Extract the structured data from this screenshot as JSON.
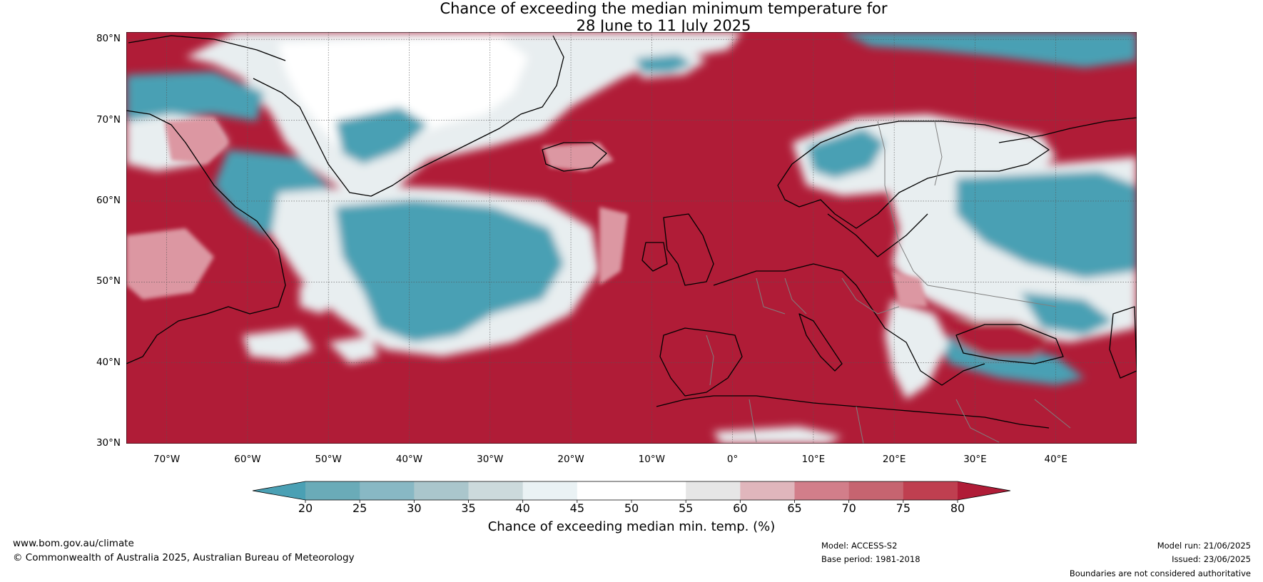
{
  "title": {
    "line1": "Chance of exceeding the median minimum temperature for",
    "line2": "28 June to 11 July 2025"
  },
  "map": {
    "lat_labels": [
      "80°N",
      "70°N",
      "60°N",
      "50°N",
      "40°N",
      "30°N"
    ],
    "lon_labels": [
      "70°W",
      "60°W",
      "50°W",
      "40°W",
      "30°W",
      "20°W",
      "10°W",
      "0°",
      "10°E",
      "20°E",
      "30°E",
      "40°E"
    ],
    "colors": {
      "red": "#b01c37",
      "teal": "#4aa0b4",
      "white": "#ffffff",
      "light": "#e8eef0",
      "pink": "#dc97a2"
    }
  },
  "colorbar": {
    "ticks": [
      "20",
      "25",
      "30",
      "35",
      "40",
      "45",
      "50",
      "55",
      "60",
      "65",
      "70",
      "75",
      "80"
    ],
    "colors": [
      "#4aa0b4",
      "#6aabb8",
      "#88b8c4",
      "#aac6cc",
      "#ccdadc",
      "#eaf2f4",
      "#ffffff",
      "#ffffff",
      "#e6e6e6",
      "#e0b6bc",
      "#d27e8a",
      "#c66470",
      "#bf3f50",
      "#b01c37"
    ],
    "label": "Chance of exceeding median min. temp. (%)"
  },
  "footer": {
    "website": "www.bom.gov.au/climate",
    "copyright": "© Commonwealth of Australia 2025, Australian Bureau of Meteorology",
    "model": "Model: ACCESS-S2",
    "base_period": "Base period: 1981-2018",
    "model_run": "Model run: 21/06/2025",
    "issued": "Issued: 23/06/2025",
    "disclaimer": "Boundaries are not considered authoritative"
  }
}
